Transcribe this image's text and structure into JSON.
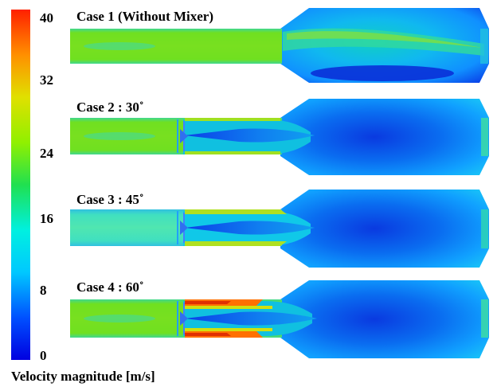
{
  "colorbar": {
    "title": "Velocity magnitude [m/s]",
    "ticks": [
      "40",
      "32",
      "24",
      "16",
      "8",
      "0"
    ],
    "stops": [
      "#0000e0",
      "#0050ff",
      "#00c8ff",
      "#00f0e0",
      "#20e050",
      "#90f000",
      "#e0e000",
      "#ff9000",
      "#ff2000"
    ]
  },
  "cases": [
    {
      "label": "Case 1 (Without Mixer)",
      "mixer": false
    },
    {
      "label": "Case 2 : 30˚",
      "mixer": true,
      "mixer_level": "low"
    },
    {
      "label": "Case 3 : 45˚",
      "mixer": true,
      "mixer_level": "medium"
    },
    {
      "label": "Case 4 : 60˚",
      "mixer": true,
      "mixer_level": "high"
    }
  ]
}
